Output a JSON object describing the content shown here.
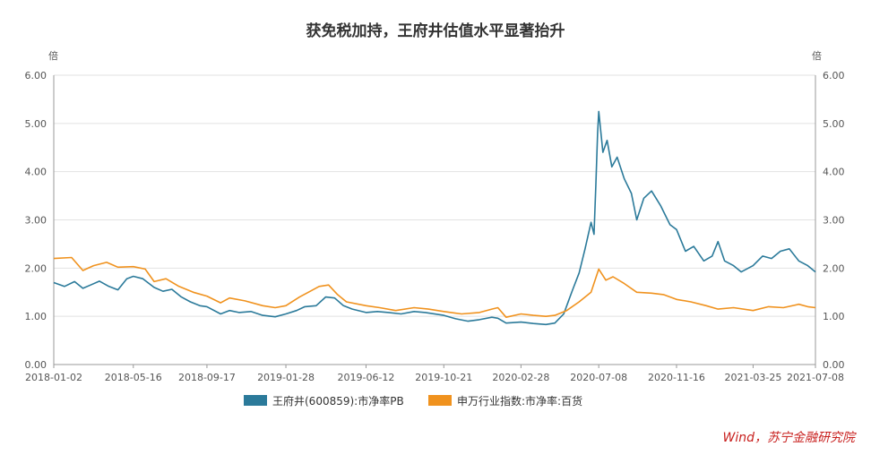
{
  "chart_data": {
    "type": "line",
    "title": "获免税加持，王府井估值水平显著抬升",
    "y_unit_left": "倍",
    "y_unit_right": "倍",
    "ylim": [
      0,
      6
    ],
    "y_ticks": [
      "0.00",
      "1.00",
      "2.00",
      "3.00",
      "4.00",
      "5.00",
      "6.00"
    ],
    "x_ticks": [
      "2018-01-02",
      "2018-05-16",
      "2018-09-17",
      "2019-01-28",
      "2019-06-12",
      "2019-10-21",
      "2020-02-28",
      "2020-07-08",
      "2020-11-16",
      "2021-03-25",
      "2021-07-08"
    ],
    "grid": true,
    "legend_position": "bottom",
    "series": [
      {
        "name": "王府井(600859):市净率PB",
        "color": "#2b7a9a",
        "points": [
          [
            "2018-01-02",
            1.7
          ],
          [
            "2018-01-20",
            1.62
          ],
          [
            "2018-02-06",
            1.72
          ],
          [
            "2018-02-20",
            1.58
          ],
          [
            "2018-03-05",
            1.65
          ],
          [
            "2018-03-20",
            1.73
          ],
          [
            "2018-04-05",
            1.62
          ],
          [
            "2018-04-20",
            1.55
          ],
          [
            "2018-05-05",
            1.78
          ],
          [
            "2018-05-16",
            1.83
          ],
          [
            "2018-06-01",
            1.78
          ],
          [
            "2018-06-20",
            1.6
          ],
          [
            "2018-07-05",
            1.52
          ],
          [
            "2018-07-20",
            1.56
          ],
          [
            "2018-08-05",
            1.4
          ],
          [
            "2018-08-20",
            1.3
          ],
          [
            "2018-09-05",
            1.22
          ],
          [
            "2018-09-17",
            1.2
          ],
          [
            "2018-10-10",
            1.05
          ],
          [
            "2018-10-25",
            1.12
          ],
          [
            "2018-11-10",
            1.08
          ],
          [
            "2018-11-30",
            1.1
          ],
          [
            "2018-12-20",
            1.02
          ],
          [
            "2019-01-10",
            0.99
          ],
          [
            "2019-01-28",
            1.05
          ],
          [
            "2019-02-15",
            1.12
          ],
          [
            "2019-03-01",
            1.2
          ],
          [
            "2019-03-20",
            1.22
          ],
          [
            "2019-04-05",
            1.4
          ],
          [
            "2019-04-20",
            1.38
          ],
          [
            "2019-05-05",
            1.22
          ],
          [
            "2019-05-20",
            1.15
          ],
          [
            "2019-06-12",
            1.08
          ],
          [
            "2019-07-01",
            1.1
          ],
          [
            "2019-07-20",
            1.08
          ],
          [
            "2019-08-10",
            1.05
          ],
          [
            "2019-09-01",
            1.1
          ],
          [
            "2019-09-20",
            1.08
          ],
          [
            "2019-10-21",
            1.02
          ],
          [
            "2019-11-10",
            0.95
          ],
          [
            "2019-12-01",
            0.9
          ],
          [
            "2019-12-20",
            0.93
          ],
          [
            "2020-01-10",
            0.98
          ],
          [
            "2020-01-20",
            0.96
          ],
          [
            "2020-02-03",
            0.86
          ],
          [
            "2020-02-28",
            0.88
          ],
          [
            "2020-03-20",
            0.85
          ],
          [
            "2020-04-10",
            0.83
          ],
          [
            "2020-04-25",
            0.86
          ],
          [
            "2020-05-10",
            1.05
          ],
          [
            "2020-05-25",
            1.55
          ],
          [
            "2020-06-05",
            1.9
          ],
          [
            "2020-06-15",
            2.4
          ],
          [
            "2020-06-25",
            2.95
          ],
          [
            "2020-06-30",
            2.7
          ],
          [
            "2020-07-03",
            3.7
          ],
          [
            "2020-07-06",
            4.8
          ],
          [
            "2020-07-08",
            5.25
          ],
          [
            "2020-07-15",
            4.4
          ],
          [
            "2020-07-22",
            4.65
          ],
          [
            "2020-07-30",
            4.1
          ],
          [
            "2020-08-08",
            4.3
          ],
          [
            "2020-08-20",
            3.85
          ],
          [
            "2020-09-01",
            3.55
          ],
          [
            "2020-09-10",
            3.0
          ],
          [
            "2020-09-22",
            3.45
          ],
          [
            "2020-10-05",
            3.6
          ],
          [
            "2020-10-20",
            3.3
          ],
          [
            "2020-11-05",
            2.9
          ],
          [
            "2020-11-16",
            2.8
          ],
          [
            "2020-12-01",
            2.35
          ],
          [
            "2020-12-15",
            2.45
          ],
          [
            "2021-01-01",
            2.15
          ],
          [
            "2021-01-15",
            2.25
          ],
          [
            "2021-01-25",
            2.55
          ],
          [
            "2021-02-05",
            2.15
          ],
          [
            "2021-02-20",
            2.05
          ],
          [
            "2021-03-05",
            1.92
          ],
          [
            "2021-03-25",
            2.05
          ],
          [
            "2021-04-10",
            2.25
          ],
          [
            "2021-04-25",
            2.2
          ],
          [
            "2021-05-10",
            2.35
          ],
          [
            "2021-05-25",
            2.4
          ],
          [
            "2021-06-10",
            2.15
          ],
          [
            "2021-06-25",
            2.05
          ],
          [
            "2021-07-08",
            1.92
          ]
        ]
      },
      {
        "name": "申万行业指数:市净率:百货",
        "color": "#f0921e",
        "points": [
          [
            "2018-01-02",
            2.2
          ],
          [
            "2018-02-01",
            2.22
          ],
          [
            "2018-02-20",
            1.95
          ],
          [
            "2018-03-10",
            2.05
          ],
          [
            "2018-04-01",
            2.12
          ],
          [
            "2018-04-20",
            2.02
          ],
          [
            "2018-05-16",
            2.03
          ],
          [
            "2018-06-05",
            1.98
          ],
          [
            "2018-06-20",
            1.72
          ],
          [
            "2018-07-10",
            1.78
          ],
          [
            "2018-08-01",
            1.62
          ],
          [
            "2018-08-25",
            1.5
          ],
          [
            "2018-09-17",
            1.42
          ],
          [
            "2018-10-10",
            1.28
          ],
          [
            "2018-10-25",
            1.38
          ],
          [
            "2018-11-20",
            1.32
          ],
          [
            "2018-12-20",
            1.22
          ],
          [
            "2019-01-10",
            1.18
          ],
          [
            "2019-01-28",
            1.22
          ],
          [
            "2019-02-20",
            1.4
          ],
          [
            "2019-03-10",
            1.52
          ],
          [
            "2019-03-25",
            1.62
          ],
          [
            "2019-04-10",
            1.65
          ],
          [
            "2019-04-25",
            1.45
          ],
          [
            "2019-05-10",
            1.3
          ],
          [
            "2019-06-12",
            1.22
          ],
          [
            "2019-07-05",
            1.18
          ],
          [
            "2019-08-01",
            1.12
          ],
          [
            "2019-09-01",
            1.18
          ],
          [
            "2019-09-25",
            1.15
          ],
          [
            "2019-10-21",
            1.1
          ],
          [
            "2019-11-20",
            1.05
          ],
          [
            "2019-12-20",
            1.08
          ],
          [
            "2020-01-10",
            1.15
          ],
          [
            "2020-01-20",
            1.18
          ],
          [
            "2020-02-03",
            0.98
          ],
          [
            "2020-02-28",
            1.05
          ],
          [
            "2020-03-20",
            1.02
          ],
          [
            "2020-04-10",
            1.0
          ],
          [
            "2020-04-25",
            1.02
          ],
          [
            "2020-05-15",
            1.12
          ],
          [
            "2020-06-05",
            1.3
          ],
          [
            "2020-06-25",
            1.5
          ],
          [
            "2020-07-08",
            1.98
          ],
          [
            "2020-07-20",
            1.75
          ],
          [
            "2020-08-01",
            1.82
          ],
          [
            "2020-08-20",
            1.68
          ],
          [
            "2020-09-10",
            1.5
          ],
          [
            "2020-10-05",
            1.48
          ],
          [
            "2020-10-25",
            1.45
          ],
          [
            "2020-11-16",
            1.35
          ],
          [
            "2020-12-10",
            1.3
          ],
          [
            "2021-01-05",
            1.22
          ],
          [
            "2021-01-25",
            1.15
          ],
          [
            "2021-02-20",
            1.18
          ],
          [
            "2021-03-25",
            1.12
          ],
          [
            "2021-04-20",
            1.2
          ],
          [
            "2021-05-15",
            1.18
          ],
          [
            "2021-06-10",
            1.25
          ],
          [
            "2021-06-25",
            1.2
          ],
          [
            "2021-07-08",
            1.18
          ]
        ]
      }
    ]
  },
  "source_note": "Wind，苏宁金融研究院"
}
